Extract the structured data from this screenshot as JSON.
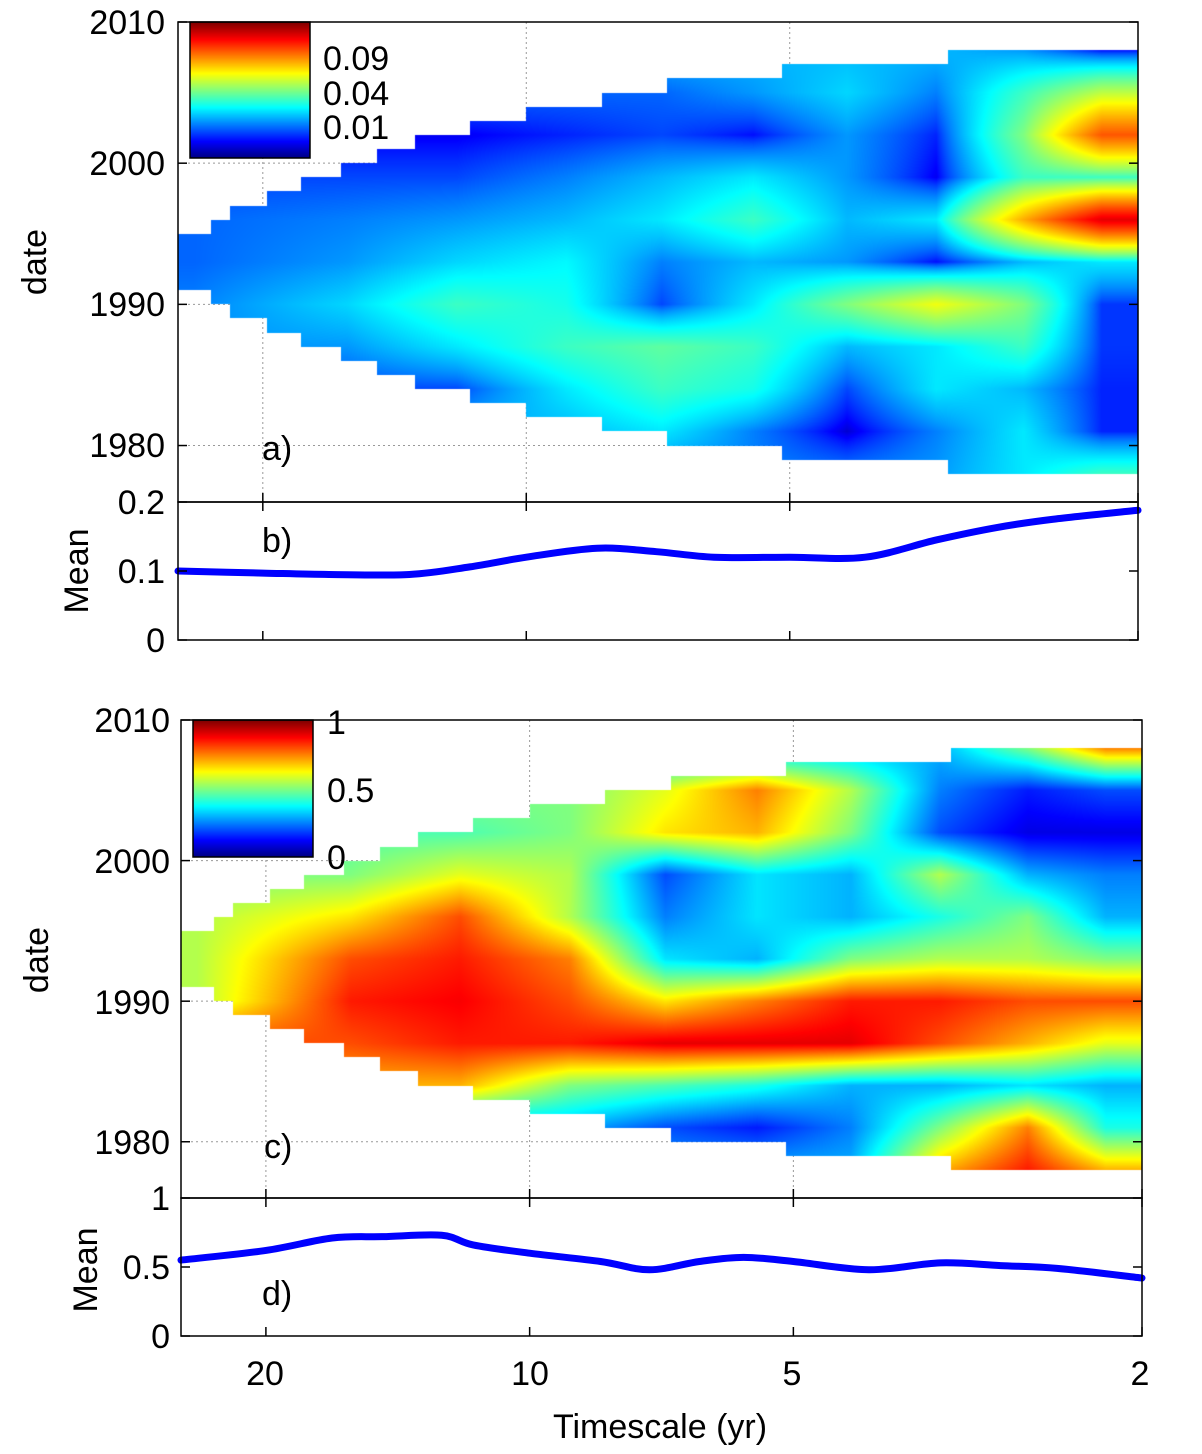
{
  "x_axis": {
    "label": "Timescale (yr)",
    "ticks": [
      "20",
      "10",
      "5",
      "2"
    ],
    "tick_values": [
      20,
      10,
      5,
      2
    ],
    "scale": "log",
    "xlim": [
      25,
      2
    ]
  },
  "chart_data": [
    {
      "panel": "a)",
      "type": "heatmap",
      "ylabel": "date",
      "yticks": [
        "2010",
        "2000",
        "1990",
        "1980"
      ],
      "ytick_values": [
        2010,
        2000,
        1990,
        1980
      ],
      "ylim": [
        1976,
        2010
      ],
      "grid": true,
      "timescales": [
        24,
        16,
        12,
        9,
        7,
        5.5,
        4.3,
        3.4,
        2.7,
        2.2
      ],
      "dates": [
        2008,
        2005,
        2002,
        1999,
        1996,
        1993,
        1990,
        1987,
        1984,
        1981,
        1978
      ],
      "values": [
        [
          null,
          null,
          null,
          null,
          null,
          null,
          null,
          0.015,
          0.012,
          0.003
        ],
        [
          null,
          null,
          null,
          0.008,
          0.008,
          0.012,
          0.018,
          0.01,
          0.03,
          0.05
        ],
        [
          null,
          null,
          0.002,
          0.004,
          0.006,
          0.003,
          0.012,
          0.004,
          0.04,
          0.1
        ],
        [
          null,
          0.006,
          0.006,
          0.01,
          0.015,
          0.02,
          0.012,
          0.002,
          0.03,
          0.03
        ],
        [
          0.008,
          0.01,
          0.012,
          0.015,
          0.02,
          0.03,
          0.015,
          0.02,
          0.08,
          0.13
        ],
        [
          0.008,
          0.012,
          0.018,
          0.022,
          0.01,
          0.015,
          0.012,
          0.003,
          0.015,
          0.02
        ],
        [
          0.01,
          0.018,
          0.03,
          0.025,
          0.006,
          0.02,
          0.04,
          0.06,
          0.04,
          0.005
        ],
        [
          null,
          0.012,
          0.02,
          0.03,
          0.035,
          0.03,
          0.015,
          0.02,
          0.03,
          0.005
        ],
        [
          null,
          null,
          0.006,
          0.02,
          0.03,
          0.025,
          0.006,
          0.02,
          0.015,
          0.004
        ],
        [
          null,
          null,
          null,
          0.015,
          0.02,
          0.01,
          0.001,
          0.01,
          0.02,
          0.004
        ],
        [
          null,
          null,
          null,
          null,
          null,
          null,
          0.01,
          0.012,
          0.02,
          0.03
        ]
      ],
      "colorbar": {
        "ticks": [
          "0.09",
          "0.04",
          "0.01"
        ],
        "tick_values": [
          0.09,
          0.04,
          0.01
        ],
        "colormap": "jet",
        "scale": "sqrt",
        "range": [
          0,
          0.16
        ],
        "placement": "top-left"
      }
    },
    {
      "panel": "b)",
      "type": "line",
      "ylabel": "Mean",
      "yticks": [
        "0.2",
        "0.1",
        "0"
      ],
      "ytick_values": [
        0.2,
        0.1,
        0
      ],
      "ylim": [
        0,
        0.2
      ],
      "color": "#0000ff",
      "x": [
        25,
        20,
        16.8,
        13.6,
        11.6,
        10,
        8.3,
        7.1,
        6.1,
        5,
        4.1,
        3.4,
        2.9,
        2.5,
        2
      ],
      "y": [
        0.1,
        0.097,
        0.095,
        0.095,
        0.106,
        0.12,
        0.133,
        0.128,
        0.12,
        0.12,
        0.12,
        0.145,
        0.163,
        0.175,
        0.188
      ]
    },
    {
      "panel": "c)",
      "type": "heatmap",
      "ylabel": "date",
      "yticks": [
        "2010",
        "2000",
        "1990",
        "1980"
      ],
      "ytick_values": [
        2010,
        2000,
        1990,
        1980
      ],
      "ylim": [
        1976,
        2010
      ],
      "grid": true,
      "contours": true,
      "timescales": [
        24,
        16,
        12,
        9,
        7,
        5.5,
        4.3,
        3.4,
        2.7,
        2.2
      ],
      "dates": [
        2008,
        2005,
        2002,
        1999,
        1996,
        1993,
        1990,
        1987,
        1984,
        1981,
        1978
      ],
      "values": [
        [
          null,
          null,
          null,
          null,
          null,
          null,
          null,
          0.3,
          0.5,
          0.75
        ],
        [
          null,
          null,
          null,
          0.5,
          0.6,
          0.75,
          0.55,
          0.25,
          0.15,
          0.2
        ],
        [
          null,
          null,
          0.45,
          0.5,
          0.65,
          0.7,
          0.5,
          0.2,
          0.1,
          0.1
        ],
        [
          null,
          0.5,
          0.6,
          0.55,
          0.2,
          0.35,
          0.3,
          0.55,
          0.3,
          0.25
        ],
        [
          0.55,
          0.65,
          0.8,
          0.55,
          0.25,
          0.35,
          0.3,
          0.4,
          0.5,
          0.3
        ],
        [
          0.55,
          0.8,
          0.85,
          0.75,
          0.35,
          0.3,
          0.5,
          0.55,
          0.55,
          0.5
        ],
        [
          0.55,
          0.85,
          0.88,
          0.8,
          0.65,
          0.75,
          0.85,
          0.85,
          0.8,
          0.8
        ],
        [
          null,
          0.8,
          0.85,
          0.85,
          0.9,
          0.9,
          0.9,
          0.8,
          0.7,
          0.6
        ],
        [
          null,
          null,
          0.7,
          0.5,
          0.45,
          0.4,
          0.3,
          0.3,
          0.35,
          0.3
        ],
        [
          null,
          null,
          null,
          0.3,
          0.2,
          0.15,
          0.25,
          0.5,
          0.75,
          0.4
        ],
        [
          null,
          null,
          null,
          null,
          null,
          null,
          0.3,
          0.7,
          0.85,
          0.7
        ]
      ],
      "colorbar": {
        "ticks": [
          "1",
          "0.5",
          "0"
        ],
        "tick_values": [
          1,
          0.5,
          0
        ],
        "colormap": "jet",
        "scale": "linear",
        "range": [
          0,
          1
        ],
        "placement": "top-left"
      }
    },
    {
      "panel": "d)",
      "type": "line",
      "ylabel": "Mean",
      "yticks": [
        "1",
        "0.5",
        "0"
      ],
      "ytick_values": [
        1,
        0.5,
        0
      ],
      "ylim": [
        0,
        1
      ],
      "color": "#0000ff",
      "x": [
        25,
        20,
        16.8,
        14.7,
        12.6,
        11.6,
        10,
        8.3,
        7.3,
        6.4,
        5.7,
        5,
        4.1,
        3.4,
        2.9,
        2.5,
        2
      ],
      "y": [
        0.55,
        0.62,
        0.71,
        0.72,
        0.73,
        0.66,
        0.6,
        0.54,
        0.48,
        0.54,
        0.57,
        0.54,
        0.48,
        0.53,
        0.51,
        0.49,
        0.42
      ]
    }
  ],
  "cone_of_influence": [
    {
      "timescale": 25,
      "date_min": 1991,
      "date_max": 1995
    },
    {
      "timescale": 22.9,
      "date_min": 1990,
      "date_max": 1996
    },
    {
      "timescale": 21.8,
      "date_min": 1989,
      "date_max": 1997
    },
    {
      "timescale": 19.8,
      "date_min": 1988,
      "date_max": 1998
    },
    {
      "timescale": 18.1,
      "date_min": 1987,
      "date_max": 1999
    },
    {
      "timescale": 16.3,
      "date_min": 1986,
      "date_max": 2000
    },
    {
      "timescale": 14.8,
      "date_min": 1985,
      "date_max": 2001
    },
    {
      "timescale": 13.4,
      "date_min": 1984,
      "date_max": 2002
    },
    {
      "timescale": 11.6,
      "date_min": 1983,
      "date_max": 2003
    },
    {
      "timescale": 10,
      "date_min": 1982,
      "date_max": 2004
    },
    {
      "timescale": 8.2,
      "date_min": 1981,
      "date_max": 2005
    },
    {
      "timescale": 6.9,
      "date_min": 1980,
      "date_max": 2006
    },
    {
      "timescale": 5.1,
      "date_min": 1979,
      "date_max": 2007
    },
    {
      "timescale": 3.3,
      "date_min": 1978,
      "date_max": 2008
    }
  ]
}
